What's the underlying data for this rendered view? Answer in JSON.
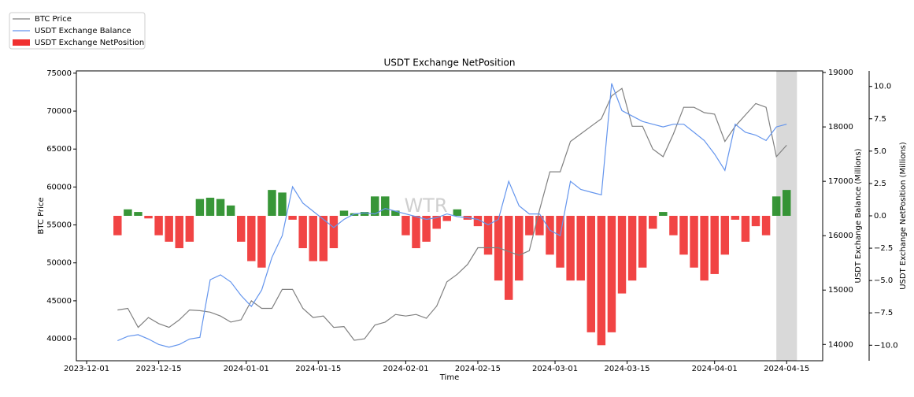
{
  "chart_data": {
    "type": "combo",
    "title": "USDT Exchange NetPosition",
    "x_label": "Time",
    "y_label": "BTC Price",
    "y2_label": "USDT Exchange Balance (Millions)",
    "y3_label": "USDT Exchange NetPosition (Millions)",
    "watermark": "WTR",
    "legend": "upper left",
    "highlight_span": [
      "2024-04-13",
      "2024-04-17"
    ],
    "highlight_color": "#d9d9d9",
    "xlim": [
      "2023-11-29",
      "2024-04-22"
    ],
    "xticks": [
      "2023-12-01",
      "2023-12-15",
      "2024-01-01",
      "2024-01-15",
      "2024-02-01",
      "2024-02-15",
      "2024-03-01",
      "2024-03-15",
      "2024-04-01",
      "2024-04-15"
    ],
    "ylim": [
      37100,
      75300
    ],
    "yticks": [
      40000,
      45000,
      50000,
      55000,
      60000,
      65000,
      70000,
      75000
    ],
    "y2lim": [
      13700,
      19030
    ],
    "y2ticks": [
      14000,
      15000,
      16000,
      17000,
      18000,
      19000
    ],
    "y3lim": [
      -11.2,
      11.2
    ],
    "y3ticks": [
      {
        "value": -10,
        "label": "−10.0"
      },
      {
        "value": -7.5,
        "label": "−7.5"
      },
      {
        "value": -5,
        "label": "−5.0"
      },
      {
        "value": -2.5,
        "label": "−2.5"
      },
      {
        "value": 0,
        "label": "0.0"
      },
      {
        "value": 2.5,
        "label": "2.5"
      },
      {
        "value": 5,
        "label": "5.0"
      },
      {
        "value": 7.5,
        "label": "7.5"
      },
      {
        "value": 10,
        "label": "10.0"
      }
    ],
    "x": [
      "2023-12-07",
      "2023-12-09",
      "2023-12-11",
      "2023-12-13",
      "2023-12-15",
      "2023-12-17",
      "2023-12-19",
      "2023-12-21",
      "2023-12-23",
      "2023-12-25",
      "2023-12-27",
      "2023-12-29",
      "2023-12-31",
      "2024-01-02",
      "2024-01-04",
      "2024-01-06",
      "2024-01-08",
      "2024-01-10",
      "2024-01-12",
      "2024-01-14",
      "2024-01-16",
      "2024-01-18",
      "2024-01-20",
      "2024-01-22",
      "2024-01-24",
      "2024-01-26",
      "2024-01-28",
      "2024-01-30",
      "2024-02-01",
      "2024-02-03",
      "2024-02-05",
      "2024-02-07",
      "2024-02-09",
      "2024-02-11",
      "2024-02-13",
      "2024-02-15",
      "2024-02-17",
      "2024-02-19",
      "2024-02-21",
      "2024-02-23",
      "2024-02-25",
      "2024-02-27",
      "2024-02-29",
      "2024-03-02",
      "2024-03-04",
      "2024-03-06",
      "2024-03-08",
      "2024-03-10",
      "2024-03-12",
      "2024-03-14",
      "2024-03-16",
      "2024-03-18",
      "2024-03-20",
      "2024-03-22",
      "2024-03-24",
      "2024-03-26",
      "2024-03-28",
      "2024-03-30",
      "2024-04-01",
      "2024-04-03",
      "2024-04-05",
      "2024-04-07",
      "2024-04-09",
      "2024-04-11",
      "2024-04-13",
      "2024-04-15"
    ],
    "series": [
      {
        "name": "BTC Price",
        "kind": "line",
        "axis": "y",
        "color": "#808080",
        "values": [
          43800,
          44000,
          41500,
          42800,
          42000,
          41500,
          42500,
          43800,
          43700,
          43500,
          43000,
          42200,
          42500,
          45000,
          44000,
          44000,
          46500,
          46500,
          44000,
          42800,
          43000,
          41500,
          41600,
          39800,
          40000,
          41800,
          42200,
          43200,
          43000,
          43200,
          42700,
          44300,
          47500,
          48500,
          49800,
          52000,
          52000,
          52000,
          51500,
          51000,
          51600,
          57000,
          62000,
          62000,
          66000,
          67000,
          68000,
          69000,
          72000,
          73000,
          68000,
          68000,
          65000,
          64000,
          67000,
          70500,
          70500,
          69800,
          69600,
          66000,
          68000,
          69500,
          71000,
          70500,
          64000,
          65500
        ]
      },
      {
        "name": "USDT Exchange Balance",
        "kind": "line",
        "axis": "y2",
        "color": "#6495ed",
        "values": [
          14070,
          14150,
          14180,
          14100,
          14000,
          13950,
          14000,
          14100,
          14130,
          15190,
          15280,
          15150,
          14900,
          14700,
          15000,
          15600,
          16000,
          16900,
          16600,
          16450,
          16300,
          16150,
          16300,
          16400,
          16420,
          16400,
          16500,
          16450,
          16400,
          16350,
          16300,
          16330,
          16400,
          16350,
          16330,
          16300,
          16200,
          16300,
          17000,
          16550,
          16400,
          16400,
          16100,
          16000,
          17000,
          16850,
          16800,
          16750,
          18800,
          18300,
          18200,
          18100,
          18050,
          18000,
          18050,
          18050,
          17900,
          17750,
          17500,
          17200,
          18050,
          17900,
          17850,
          17750,
          18000,
          18050
        ]
      },
      {
        "name": "USDT Exchange NetPosition",
        "kind": "bar",
        "axis": "y3",
        "color": "#f03030",
        "positive_color": "#228b22",
        "values": [
          -1.5,
          0.5,
          0.3,
          -0.2,
          -1.5,
          -2,
          -2.5,
          -2,
          1.3,
          1.4,
          1.3,
          0.8,
          -2,
          -3.5,
          -4,
          2,
          1.8,
          -0.3,
          -2.5,
          -3.5,
          -3.5,
          -2.5,
          0.4,
          0.2,
          0.3,
          1.5,
          1.5,
          0.4,
          -1.5,
          -2.5,
          -2,
          -1,
          -0.4,
          0.5,
          -0.3,
          -0.8,
          -3,
          -5,
          -6.5,
          -5,
          -1.5,
          -1.5,
          -3,
          -4,
          -5,
          -5,
          -9,
          -10,
          -9,
          -6,
          -5,
          -4,
          -1,
          0.3,
          -1.5,
          -3,
          -4,
          -5,
          -4.5,
          -3,
          -0.3,
          -2,
          -0.8,
          -1.5,
          1.5,
          2
        ]
      }
    ]
  }
}
